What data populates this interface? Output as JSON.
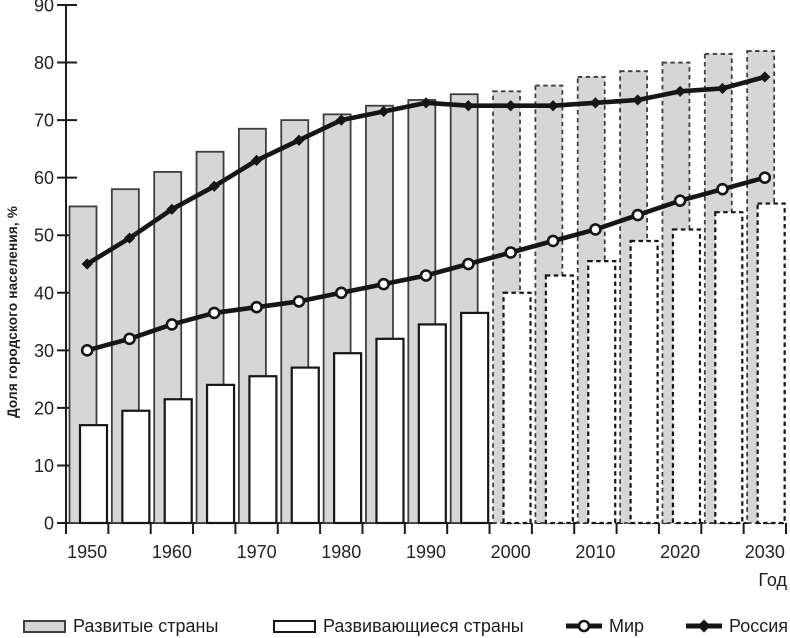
{
  "figure": {
    "ylabel": "Доля городского населения, %",
    "xlabel": "Год"
  },
  "colors": {
    "bar_gray_fill": "#d6d6d6",
    "bar_gray_border": "#3f3f3f",
    "bar_white_fill": "#ffffff",
    "bar_white_border": "#161616",
    "line_color": "#161616",
    "axis_color": "#1c1c1c",
    "text_color": "#232323"
  },
  "chart_data": {
    "type": "bar+line",
    "title": "",
    "ylabel": "Доля городского населения, %",
    "xlabel": "Год",
    "ylim": [
      0,
      90
    ],
    "ytick_step": 10,
    "grid": false,
    "legend_position": "bottom",
    "categories": [
      1950,
      1955,
      1960,
      1965,
      1970,
      1975,
      1980,
      1985,
      1990,
      1995,
      2000,
      2005,
      2010,
      2015,
      2020,
      2025,
      2030
    ],
    "xtick_labels": [
      "1950",
      "1960",
      "1970",
      "1980",
      "1990",
      "2000",
      "2010",
      "2020",
      "2030"
    ],
    "forecast_from_year": 2000,
    "forecast_from_index": 10,
    "bar_series": [
      {
        "name": "Развитые страны",
        "style": "gray",
        "values": [
          55,
          58,
          61,
          64.5,
          68.5,
          70,
          71,
          72.5,
          73.5,
          74.5,
          75,
          76,
          77.5,
          78.5,
          80,
          81.5,
          82
        ]
      },
      {
        "name": "Развивающиеся страны",
        "style": "white",
        "values": [
          17,
          19.5,
          21.5,
          24,
          25.5,
          27,
          29.5,
          32,
          34.5,
          36.5,
          40,
          43,
          45.5,
          49,
          51,
          54,
          55.5
        ]
      }
    ],
    "line_series": [
      {
        "name": "Мир",
        "marker": "circle",
        "values": [
          30,
          32,
          34.5,
          36.5,
          37.5,
          38.5,
          40,
          41.5,
          43,
          45,
          47,
          49,
          51,
          53.5,
          56,
          58,
          60
        ]
      },
      {
        "name": "Россия",
        "marker": "diamond",
        "values": [
          45,
          49.5,
          54.5,
          58.5,
          63,
          66.5,
          70,
          71.5,
          73,
          72.5,
          72.5,
          72.5,
          73,
          73.5,
          75,
          75.5,
          77.5
        ]
      }
    ]
  }
}
